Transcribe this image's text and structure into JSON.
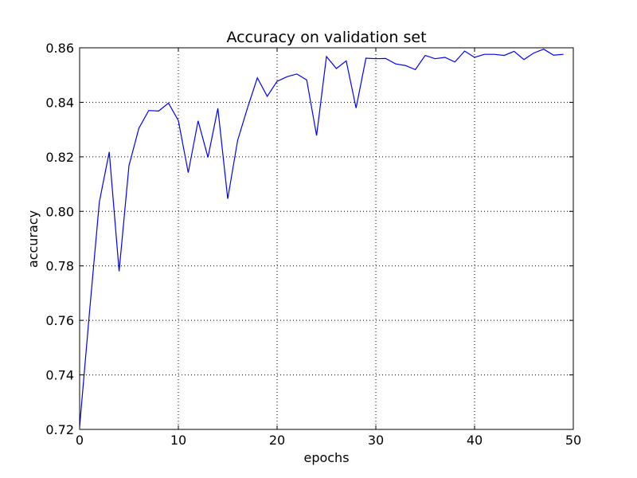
{
  "chart_data": {
    "type": "line",
    "title": "Accuracy on validation set",
    "xlabel": "epochs",
    "ylabel": "accuracy",
    "xlim": [
      0,
      50
    ],
    "ylim": [
      0.72,
      0.86
    ],
    "xticks": [
      "0",
      "10",
      "20",
      "30",
      "40",
      "50"
    ],
    "yticks": [
      "0.72",
      "0.74",
      "0.76",
      "0.78",
      "0.80",
      "0.82",
      "0.84",
      "0.86"
    ],
    "grid": true,
    "series": [
      {
        "color": "#0000ff",
        "x": [
          0,
          1,
          2,
          3,
          4,
          5,
          6,
          7,
          8,
          9,
          10,
          11,
          12,
          13,
          14,
          15,
          16,
          17,
          18,
          19,
          20,
          21,
          22,
          23,
          24,
          25,
          26,
          27,
          28,
          29,
          30,
          31,
          32,
          33,
          34,
          35,
          36,
          37,
          38,
          39,
          40,
          41,
          42,
          43,
          44,
          45,
          46,
          47,
          48,
          49
        ],
        "y": [
          0.721,
          0.763,
          0.8035,
          0.8218,
          0.778,
          0.8168,
          0.8305,
          0.837,
          0.8368,
          0.8397,
          0.8333,
          0.8142,
          0.8332,
          0.8198,
          0.8378,
          0.8046,
          0.826,
          0.8379,
          0.849,
          0.8422,
          0.8477,
          0.8494,
          0.8504,
          0.8482,
          0.8278,
          0.8568,
          0.8524,
          0.8552,
          0.8379,
          0.8562,
          0.856,
          0.8561,
          0.8541,
          0.8535,
          0.852,
          0.8572,
          0.856,
          0.8565,
          0.8548,
          0.8588,
          0.8565,
          0.8576,
          0.8576,
          0.8572,
          0.8587,
          0.8557,
          0.8581,
          0.8595,
          0.8573,
          0.8576
        ]
      }
    ]
  }
}
